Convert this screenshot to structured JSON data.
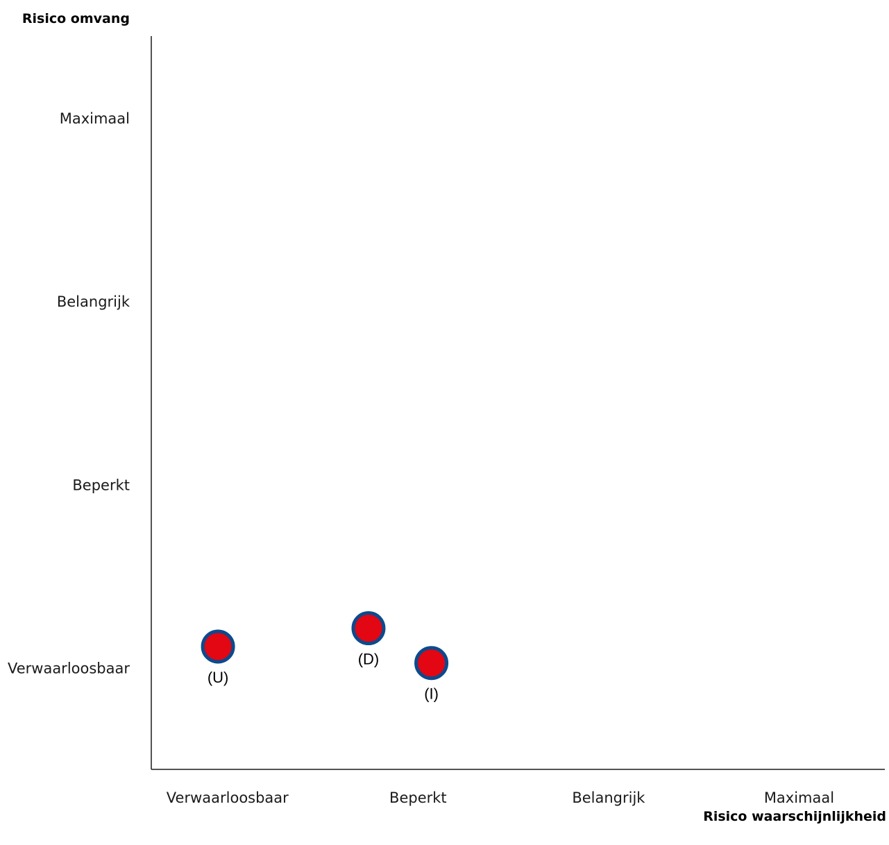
{
  "chart_data": {
    "type": "scatter",
    "title": "",
    "ylabel": "Risico omvang",
    "xlabel": "Risico waarschijnlijkheid",
    "x_categories": [
      "Verwaarloosbaar",
      "Beperkt",
      "Belangrijk",
      "Maximaal"
    ],
    "y_categories": [
      "Verwaarloosbaar",
      "Beperkt",
      "Belangrijk",
      "Maximaal"
    ],
    "xlim": [
      0.6,
      4.45
    ],
    "ylim": [
      0.45,
      4.45
    ],
    "grid": false,
    "legend": "none",
    "points": [
      {
        "label": "(U)",
        "x": 0.95,
        "y": 1.12
      },
      {
        "label": "(D)",
        "x": 1.74,
        "y": 1.22
      },
      {
        "label": "(I)",
        "x": 2.07,
        "y": 1.03
      }
    ],
    "marker_fill": "#e30613",
    "marker_stroke": "#0d4a8c"
  }
}
